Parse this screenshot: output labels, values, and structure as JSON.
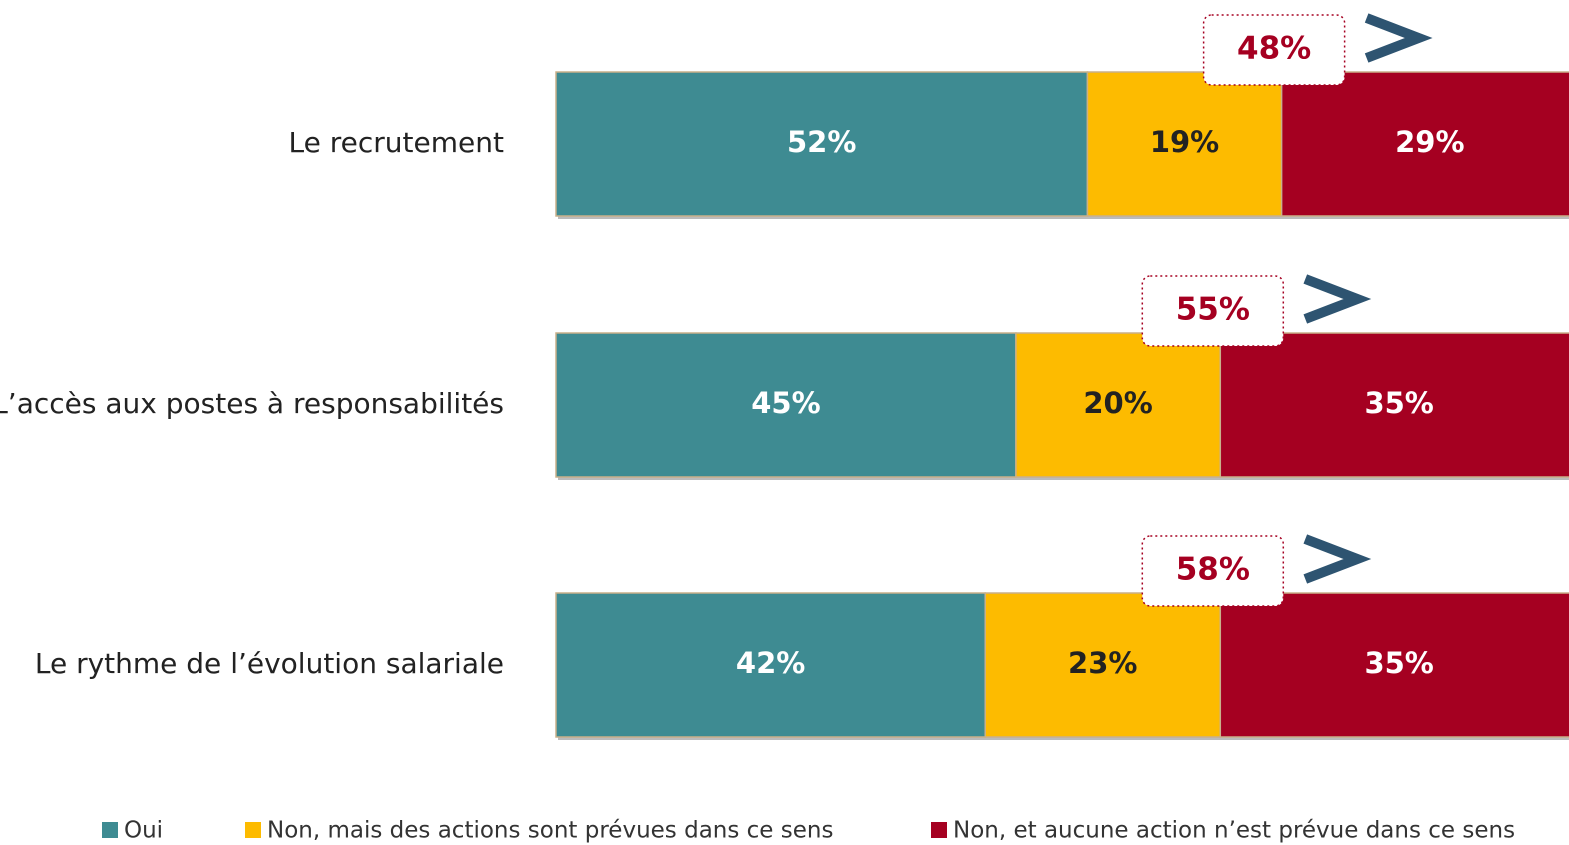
{
  "chart_data": {
    "type": "stacked-bar-horizontal",
    "categories": [
      "Le recrutement",
      "L’accès aux postes à responsabilités",
      "Le rythme de l’évolution salariale"
    ],
    "series": [
      {
        "name": "Oui",
        "color": "#3e8b92",
        "values": [
          52,
          45,
          42
        ],
        "value_labels": [
          "52%",
          "45%",
          "42%"
        ],
        "label_color": "#ffffff"
      },
      {
        "name": "Non, mais des actions sont prévues dans ce sens",
        "color": "#fdbb00",
        "values": [
          19,
          20,
          23
        ],
        "value_labels": [
          "19%",
          "20%",
          "23%"
        ],
        "label_color": "#222222"
      },
      {
        "name": "Non, et aucune action n’est prévue dans ce sens",
        "color": "#a50021",
        "values": [
          29,
          35,
          35
        ],
        "value_labels": [
          "29%",
          "35%",
          "35%"
        ],
        "label_color": "#ffffff"
      }
    ],
    "callouts": {
      "values": [
        48,
        55,
        58
      ],
      "value_labels": [
        "48%",
        "55%",
        "58%"
      ]
    },
    "xlim": [
      0,
      100
    ]
  }
}
